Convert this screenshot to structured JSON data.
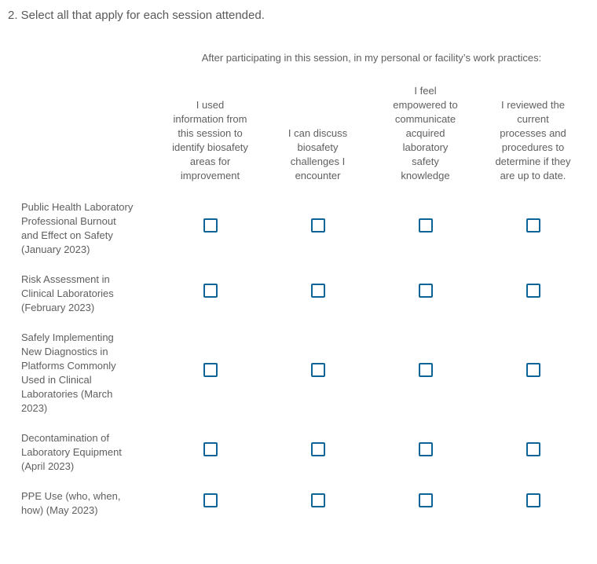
{
  "question": {
    "title": "2. Select all that apply for each session attended."
  },
  "matrix": {
    "instruction": "After participating in this session, in my personal or facility’s work practices:",
    "columns": [
      "I used information from this session to identify biosafety areas for improvement",
      "I can discuss biosafety challenges I encounter",
      "I feel empowered to communicate acquired laboratory safety knowledge",
      "I reviewed the current processes and procedures to determine if they are up to date."
    ],
    "rows": [
      {
        "label": "Public Health Laboratory Professional Burnout and Effect on Safety (January 2023)",
        "selections": [
          false,
          false,
          false,
          false
        ]
      },
      {
        "label": "Risk Assessment in Clinical Laboratories (February 2023)",
        "selections": [
          false,
          false,
          false,
          false
        ]
      },
      {
        "label": "Safely Implementing New Diagnostics in Platforms Commonly Used in Clinical Laboratories (March 2023)",
        "selections": [
          false,
          false,
          false,
          false
        ]
      },
      {
        "label": "Decontamination of Laboratory Equipment (April 2023)",
        "selections": [
          false,
          false,
          false,
          false
        ]
      },
      {
        "label": "PPE Use (who, when, how) (May 2023)",
        "selections": [
          false,
          false,
          false,
          false
        ]
      }
    ],
    "colors": {
      "checkbox_border": "#0d6496",
      "text": "#5f5f5f"
    }
  }
}
